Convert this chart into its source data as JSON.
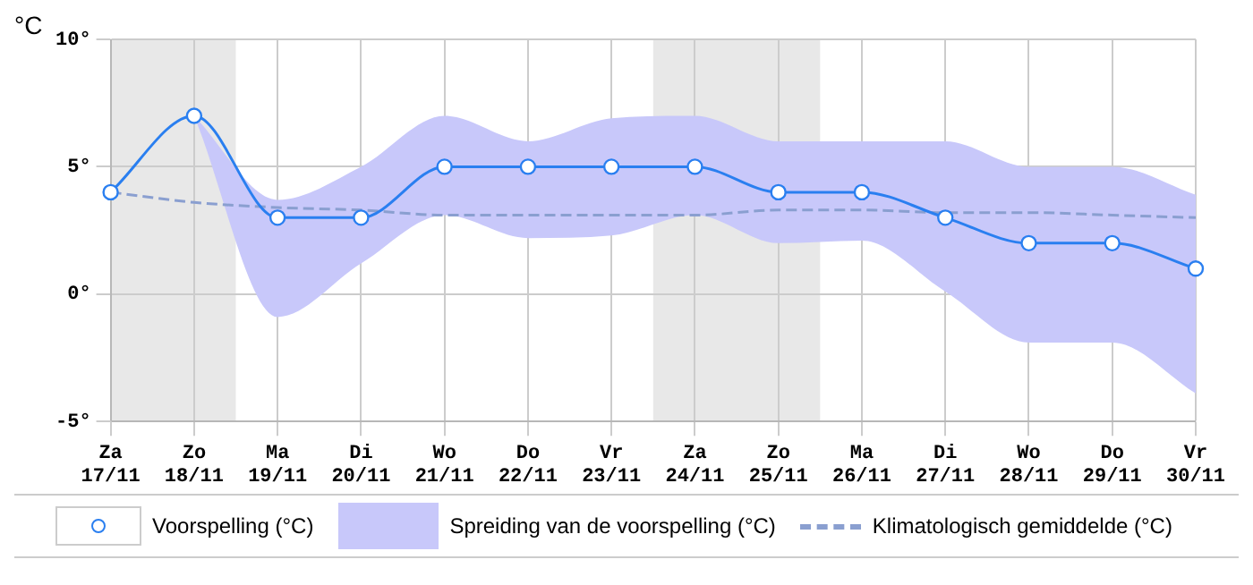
{
  "chart_data": {
    "type": "line",
    "ylabel": "°C",
    "categories": [
      "Za\n17/11",
      "Zo\n18/11",
      "Ma\n19/11",
      "Di\n20/11",
      "Wo\n21/11",
      "Do\n22/11",
      "Vr\n23/11",
      "Za\n24/11",
      "Zo\n25/11",
      "Ma\n26/11",
      "Di\n27/11",
      "Wo\n28/11",
      "Do\n29/11",
      "Vr\n30/11"
    ],
    "series": [
      {
        "name": "Voorspelling (°C)",
        "color": "#2a7ff0",
        "marker": "circle",
        "line_style": "solid",
        "values": [
          4,
          7,
          3,
          3,
          5,
          5,
          5,
          5,
          4,
          4,
          3,
          2,
          2,
          1
        ],
        "lower": [
          null,
          7,
          -0.9,
          1.2,
          3.1,
          2.2,
          2.3,
          3.1,
          2.0,
          2.1,
          0.1,
          -1.9,
          -1.9,
          -3.9
        ],
        "upper": [
          null,
          7,
          3.7,
          5.0,
          7.0,
          6.0,
          6.9,
          7.0,
          6.0,
          6.0,
          6.0,
          5.0,
          5.0,
          3.9
        ]
      },
      {
        "name": "Klimatologisch gemiddelde (°C)",
        "color": "#8a9fd0",
        "marker": "none",
        "line_style": "dashed",
        "values": [
          4.0,
          3.6,
          3.4,
          3.3,
          3.1,
          3.1,
          3.1,
          3.1,
          3.3,
          3.3,
          3.2,
          3.2,
          3.1,
          3.0
        ]
      }
    ],
    "annotations": [
      "Spreiding van de voorspelling (°C)"
    ],
    "ylim": [
      -5,
      10
    ],
    "yticks": [
      {
        "value": -5,
        "label": "-5°"
      },
      {
        "value": 0,
        "label": "0°"
      },
      {
        "value": 5,
        "label": "5°"
      },
      {
        "value": 10,
        "label": "10°"
      }
    ],
    "bands": [
      {
        "axis": "x",
        "from": "Za\n17/11",
        "to": "Zo\n18/11",
        "color": "#e8e8e8"
      },
      {
        "axis": "x",
        "from": "Za\n24/11",
        "to": "Zo\n25/11",
        "color": "#e8e8e8"
      }
    ],
    "grid": true,
    "legend": "bottom"
  }
}
